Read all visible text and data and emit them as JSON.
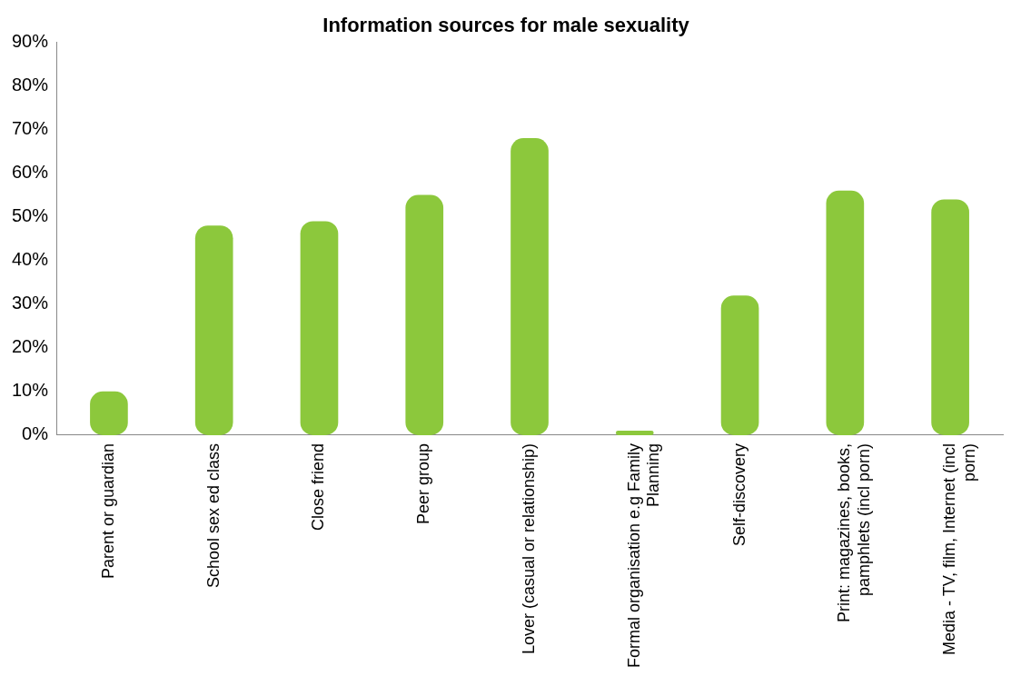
{
  "chart_data": {
    "type": "bar",
    "title": "Information sources for male sexuality",
    "categories": [
      "Parent or guardian",
      "School sex ed class",
      "Close friend",
      "Peer group",
      "Lover (casual or relationship)",
      "Formal organisation e.g Family Planning",
      "Self-discovery",
      "Print: magazines, books, pamphlets (incl porn)",
      "Media - TV, film, Internet (incl porn)"
    ],
    "values": [
      10,
      48,
      49,
      55,
      68,
      1,
      32,
      56,
      54
    ],
    "color": "#8cc83c",
    "ylim": [
      0,
      90
    ],
    "yticks": [
      {
        "value": 0,
        "label": "0%"
      },
      {
        "value": 10,
        "label": "10%"
      },
      {
        "value": 20,
        "label": "20%"
      },
      {
        "value": 30,
        "label": "30%"
      },
      {
        "value": 40,
        "label": "40%"
      },
      {
        "value": 50,
        "label": "50%"
      },
      {
        "value": 60,
        "label": "60%"
      },
      {
        "value": 70,
        "label": "70%"
      },
      {
        "value": 80,
        "label": "80%"
      },
      {
        "value": 90,
        "label": "90%"
      }
    ],
    "grid": false,
    "legend": false
  }
}
